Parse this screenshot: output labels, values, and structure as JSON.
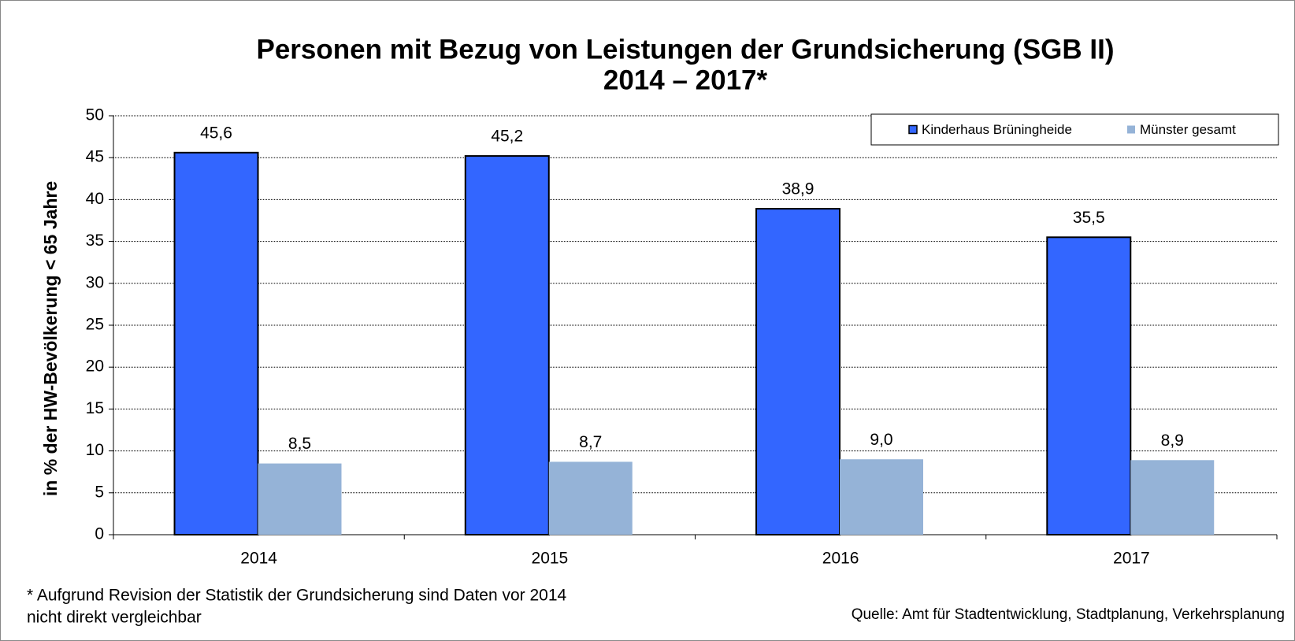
{
  "chart_data": {
    "type": "bar",
    "title": [
      "Personen mit Bezug von Leistungen der Grundsicherung (SGB II)",
      "2014 – 2017*"
    ],
    "y_label": "in % der HW-Bevölkerung < 65 Jahre",
    "categories": [
      "2014",
      "2015",
      "2016",
      "2017"
    ],
    "series": [
      {
        "name": "Kinderhaus Brüningheide",
        "color": "#3366ff",
        "values": [
          45.6,
          45.2,
          38.9,
          35.5
        ],
        "value_labels": [
          "45,6",
          "45,2",
          "38,9",
          "35,5"
        ]
      },
      {
        "name": "Münster gesamt",
        "color": "#95b3d7",
        "values": [
          8.5,
          8.7,
          9.0,
          8.9
        ],
        "value_labels": [
          "8,5",
          "8,7",
          "9,0",
          "8,9"
        ]
      }
    ],
    "ylim": [
      0,
      50
    ],
    "yticks": [
      0,
      5,
      10,
      15,
      20,
      25,
      30,
      35,
      40,
      45,
      50
    ],
    "grid": true,
    "legend": "top-right",
    "annotations": [
      "* Aufgrund Revision der Statistik der Grundsicherung sind Daten vor 2014",
      "nicht direkt vergleichbar",
      "Quelle: Amt für Stadtentwicklung, Stadtplanung, Verkehrsplanung"
    ]
  }
}
